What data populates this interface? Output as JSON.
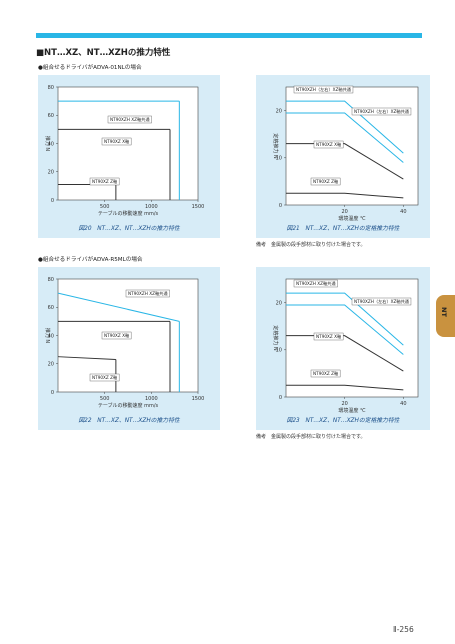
{
  "page": {
    "title": "■NT…XZ、NT…XZHの推力特性",
    "side_tab": "NT",
    "page_number": "Ⅱ-256",
    "section1_heading": "●組合せるドライバがADVA-01NLの場合",
    "section2_heading": "●組合せるドライバがADVA-R5MLの場合",
    "note_text": "備考　金属製の段手部材に取り付けた場合です。"
  },
  "colors": {
    "accent": "#29b6e6",
    "panel": "#d7ecf7",
    "tab": "#c9923f",
    "caption": "#1b4f8a"
  },
  "chart_data": [
    {
      "id": "fig20",
      "type": "line",
      "caption": "図20　NT…XZ、NT…XZHの推力特性",
      "ylabel": "推力 N",
      "xlabel": "テーブルの移動速度 mm/s",
      "ylim": [
        0,
        80
      ],
      "yticks": [
        0,
        20,
        40,
        60,
        80
      ],
      "xlim": [
        0,
        1500
      ],
      "xticks": [
        500,
        1000,
        1500
      ],
      "series": [
        {
          "name": "NT90XZH XZ軸共通",
          "color": "#29b6e6",
          "points": [
            [
              0,
              70
            ],
            [
              1300,
              70
            ]
          ],
          "drop": [
            1300,
            0
          ]
        },
        {
          "name": "NT90XZ X軸",
          "color": "#333333",
          "points": [
            [
              0,
              50
            ],
            [
              1200,
              50
            ]
          ],
          "drop": [
            1200,
            0
          ]
        },
        {
          "name": "NT90XZ Z軸",
          "color": "#333333",
          "points": [
            [
              0,
              11
            ],
            [
              620,
              11
            ]
          ],
          "drop": [
            620,
            0
          ]
        }
      ]
    },
    {
      "id": "fig21",
      "type": "line",
      "caption": "図21　NT…XZ、NT…XZHの定格推力特性",
      "ylabel": "定格推力 N",
      "xlabel": "環境温度 ℃",
      "ylim": [
        0,
        25
      ],
      "yticks": [
        0,
        10,
        20
      ],
      "xlim": [
        0,
        45
      ],
      "xticks": [
        20,
        40
      ],
      "series": [
        {
          "name": "NT90XZH（左右）XZ軸共通",
          "color": "#29b6e6",
          "points": [
            [
              0,
              22
            ],
            [
              20,
              22
            ],
            [
              40,
              11
            ]
          ]
        },
        {
          "name": "NT90XZH（左右）XZ軸共通",
          "color": "#29b6e6",
          "points": [
            [
              0,
              19.5
            ],
            [
              20,
              19.5
            ],
            [
              40,
              9
            ]
          ]
        },
        {
          "name": "NT90XZ X軸",
          "color": "#333333",
          "points": [
            [
              0,
              13
            ],
            [
              20,
              13
            ],
            [
              40,
              5.5
            ]
          ]
        },
        {
          "name": "NT90XZ Z軸",
          "color": "#333333",
          "points": [
            [
              0,
              2.5
            ],
            [
              20,
              2.5
            ],
            [
              40,
              1.5
            ]
          ]
        }
      ]
    },
    {
      "id": "fig22",
      "type": "line",
      "caption": "図22　NT…XZ、NT…XZHの推力特性",
      "ylabel": "推力 N",
      "xlabel": "テーブルの移動速度 mm/s",
      "ylim": [
        0,
        80
      ],
      "yticks": [
        0,
        20,
        40,
        60,
        80
      ],
      "xlim": [
        0,
        1500
      ],
      "xticks": [
        500,
        1000,
        1500
      ],
      "series": [
        {
          "name": "NT90XZH XZ軸共通",
          "color": "#29b6e6",
          "points": [
            [
              0,
              70
            ],
            [
              1300,
              50
            ]
          ],
          "drop": [
            1300,
            0
          ]
        },
        {
          "name": "NT90XZ X軸",
          "color": "#333333",
          "points": [
            [
              0,
              50
            ],
            [
              1200,
              50
            ]
          ],
          "drop": [
            1200,
            0
          ]
        },
        {
          "name": "NT90XZ Z軸",
          "color": "#333333",
          "points": [
            [
              0,
              25
            ],
            [
              620,
              23
            ]
          ],
          "drop": [
            620,
            0
          ]
        }
      ]
    },
    {
      "id": "fig23",
      "type": "line",
      "caption": "図23　NT…XZ、NT…XZHの定格推力特性",
      "ylabel": "定格推力 N",
      "xlabel": "環境温度 ℃",
      "ylim": [
        0,
        25
      ],
      "yticks": [
        0,
        10,
        20
      ],
      "xlim": [
        0,
        45
      ],
      "xticks": [
        20,
        40
      ],
      "series": [
        {
          "name": "NT90XZH XZ軸共通",
          "color": "#29b6e6",
          "points": [
            [
              0,
              22
            ],
            [
              20,
              22
            ],
            [
              40,
              11
            ]
          ]
        },
        {
          "name": "NT90XZH（左右）XZ軸共通",
          "color": "#29b6e6",
          "points": [
            [
              0,
              19.5
            ],
            [
              20,
              19.5
            ],
            [
              40,
              9
            ]
          ]
        },
        {
          "name": "NT90XZ X軸",
          "color": "#333333",
          "points": [
            [
              0,
              13
            ],
            [
              20,
              13
            ],
            [
              40,
              5.5
            ]
          ]
        },
        {
          "name": "NT90XZ Z軸",
          "color": "#333333",
          "points": [
            [
              0,
              2.5
            ],
            [
              20,
              2.5
            ],
            [
              40,
              1.5
            ]
          ]
        }
      ]
    }
  ]
}
